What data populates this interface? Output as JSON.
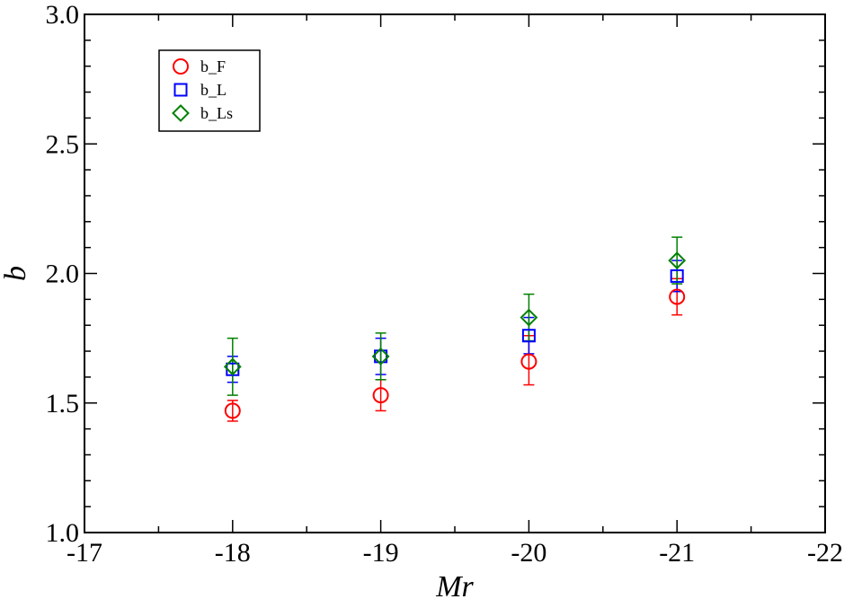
{
  "chart_data": {
    "type": "scatter",
    "title": "",
    "xlabel": "Mr",
    "ylabel": "b",
    "xlim": [
      -17,
      -22
    ],
    "ylim": [
      1.0,
      3.0
    ],
    "x_ticks": [
      -17,
      -18,
      -19,
      -20,
      -21,
      -22
    ],
    "x_tick_labels": [
      "-17",
      "-18",
      "-19",
      "-20",
      "-21",
      "-22"
    ],
    "y_ticks": [
      1.0,
      1.5,
      2.0,
      2.5,
      3.0
    ],
    "y_tick_labels": [
      "1.0",
      "1.5",
      "2.0",
      "2.5",
      "3.0"
    ],
    "grid": false,
    "legend_position": "top-left",
    "series": [
      {
        "name": "b_F",
        "marker": "circle",
        "color": "#ff0000",
        "points": [
          {
            "x": -18,
            "y": 1.47,
            "err_low": 1.43,
            "err_high": 1.51
          },
          {
            "x": -19,
            "y": 1.53,
            "err_low": 1.47,
            "err_high": 1.59
          },
          {
            "x": -20,
            "y": 1.66,
            "err_low": 1.57,
            "err_high": 1.76
          },
          {
            "x": -21,
            "y": 1.91,
            "err_low": 1.84,
            "err_high": 1.98
          }
        ]
      },
      {
        "name": "b_L",
        "marker": "square",
        "color": "#0000ff",
        "points": [
          {
            "x": -18,
            "y": 1.63,
            "err_low": 1.58,
            "err_high": 1.68
          },
          {
            "x": -19,
            "y": 1.68,
            "err_low": 1.61,
            "err_high": 1.75
          },
          {
            "x": -20,
            "y": 1.76,
            "err_low": 1.69,
            "err_high": 1.83
          },
          {
            "x": -21,
            "y": 1.99,
            "err_low": 1.93,
            "err_high": 2.05
          }
        ]
      },
      {
        "name": "b_Ls",
        "marker": "diamond",
        "color": "#008000",
        "points": [
          {
            "x": -18,
            "y": 1.64,
            "err_low": 1.53,
            "err_high": 1.75
          },
          {
            "x": -19,
            "y": 1.68,
            "err_low": 1.59,
            "err_high": 1.77
          },
          {
            "x": -20,
            "y": 1.83,
            "err_low": 1.74,
            "err_high": 1.92
          },
          {
            "x": -21,
            "y": 2.05,
            "err_low": 1.96,
            "err_high": 2.14
          }
        ]
      }
    ]
  }
}
